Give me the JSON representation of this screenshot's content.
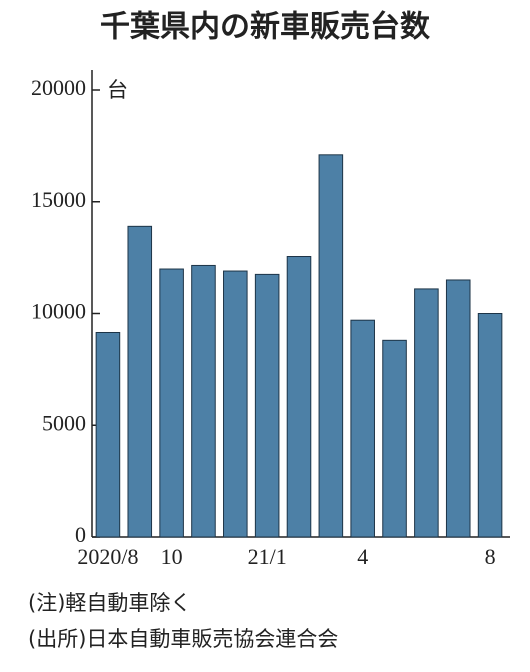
{
  "chart_data": {
    "type": "bar",
    "title": "千葉県内の新車販売台数",
    "unit": "台",
    "categories": [
      "2020/8",
      null,
      "10",
      null,
      null,
      "21/1",
      null,
      null,
      "4",
      null,
      null,
      null,
      "8"
    ],
    "values": [
      9150,
      13900,
      11990,
      12150,
      11900,
      11750,
      12550,
      17100,
      9700,
      8800,
      11100,
      11500,
      10000
    ],
    "color": "#4d80a6",
    "ylim": [
      0,
      20000
    ],
    "yticks": [
      0,
      5000,
      10000,
      15000,
      20000
    ],
    "note": "(注)軽自動車除く",
    "source": "(出所)日本自動車販売協会連合会"
  }
}
